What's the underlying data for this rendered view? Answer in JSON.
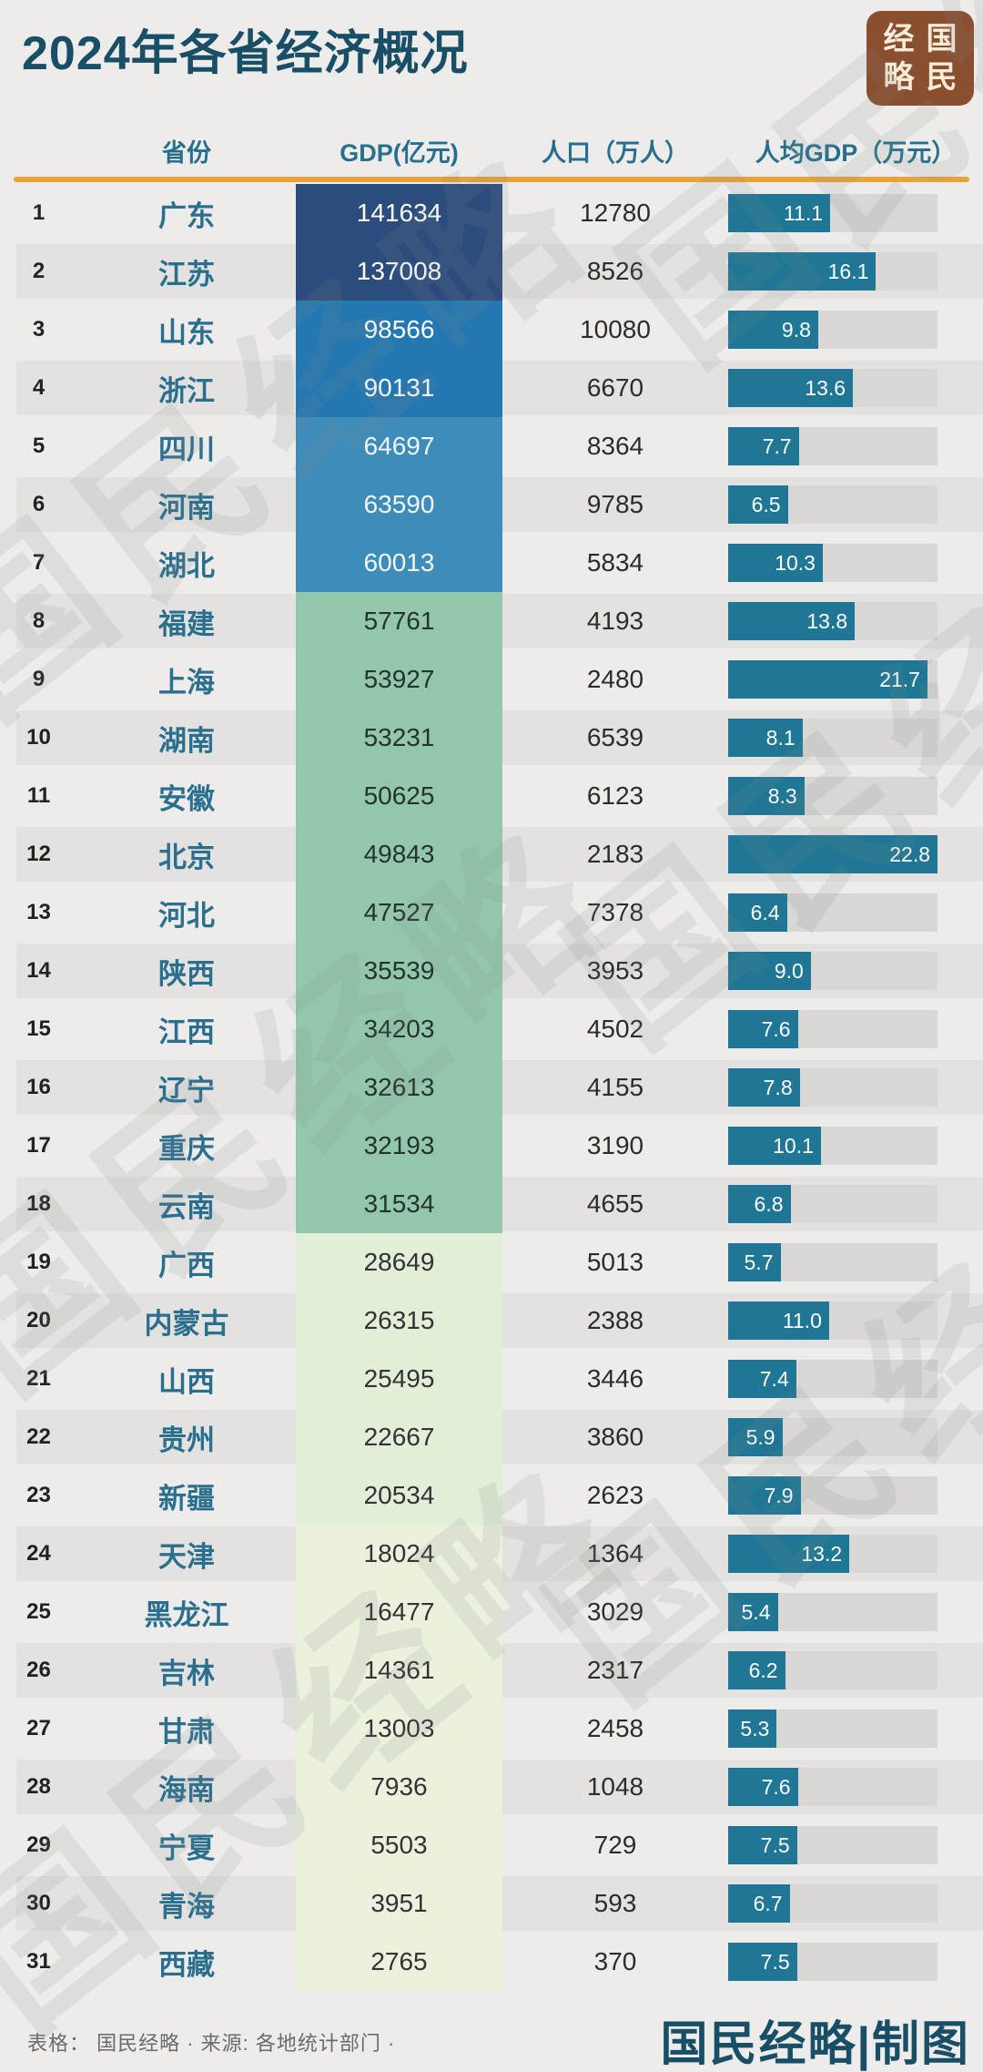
{
  "title": "2024年各省经济概况",
  "logo": {
    "chars": [
      "经",
      "国",
      "略",
      "民"
    ]
  },
  "columns": [
    "省份",
    "GDP(亿元)",
    "人口（万人）",
    "人均GDP（万元）"
  ],
  "watermark_text": "国民经略",
  "footer": {
    "source": "表格：  国民经略 · 来源: 各地统计部门 ·",
    "credit": "国民经略|制图"
  },
  "colors": {
    "accent_orange": "#e8a33b",
    "title_teal": "#184f66",
    "header_teal": "#26708e",
    "bar_fill": "#1f7795",
    "bar_track": "#d8d7d5",
    "logo_brown": "#8a4f2e",
    "gdp_groups": {
      "g1": {
        "bg": "#2b4c7d",
        "text": "#ffffff"
      },
      "g2": {
        "bg": "#2478b2",
        "text": "#ffffff"
      },
      "g3": {
        "bg": "#3e8cba",
        "text": "#f2f7f9"
      },
      "g4": {
        "bg": "#93c7ac",
        "text": "#23332d"
      },
      "g5": {
        "bg": "#e2eed7",
        "text": "#333333"
      },
      "g6": {
        "bg": "#eaf2de",
        "text": "#333333"
      }
    }
  },
  "bar_max": 22.8,
  "rows": [
    {
      "rank": 1,
      "province": "广东",
      "gdp": "141634",
      "population": "12780",
      "per_capita": "11.1",
      "group": "g1"
    },
    {
      "rank": 2,
      "province": "江苏",
      "gdp": "137008",
      "population": "8526",
      "per_capita": "16.1",
      "group": "g1"
    },
    {
      "rank": 3,
      "province": "山东",
      "gdp": "98566",
      "population": "10080",
      "per_capita": "9.8",
      "group": "g2"
    },
    {
      "rank": 4,
      "province": "浙江",
      "gdp": "90131",
      "population": "6670",
      "per_capita": "13.6",
      "group": "g2"
    },
    {
      "rank": 5,
      "province": "四川",
      "gdp": "64697",
      "population": "8364",
      "per_capita": "7.7",
      "group": "g3"
    },
    {
      "rank": 6,
      "province": "河南",
      "gdp": "63590",
      "population": "9785",
      "per_capita": "6.5",
      "group": "g3"
    },
    {
      "rank": 7,
      "province": "湖北",
      "gdp": "60013",
      "population": "5834",
      "per_capita": "10.3",
      "group": "g3"
    },
    {
      "rank": 8,
      "province": "福建",
      "gdp": "57761",
      "population": "4193",
      "per_capita": "13.8",
      "group": "g4"
    },
    {
      "rank": 9,
      "province": "上海",
      "gdp": "53927",
      "population": "2480",
      "per_capita": "21.7",
      "group": "g4"
    },
    {
      "rank": 10,
      "province": "湖南",
      "gdp": "53231",
      "population": "6539",
      "per_capita": "8.1",
      "group": "g4"
    },
    {
      "rank": 11,
      "province": "安徽",
      "gdp": "50625",
      "population": "6123",
      "per_capita": "8.3",
      "group": "g4"
    },
    {
      "rank": 12,
      "province": "北京",
      "gdp": "49843",
      "population": "2183",
      "per_capita": "22.8",
      "group": "g4"
    },
    {
      "rank": 13,
      "province": "河北",
      "gdp": "47527",
      "population": "7378",
      "per_capita": "6.4",
      "group": "g4"
    },
    {
      "rank": 14,
      "province": "陕西",
      "gdp": "35539",
      "population": "3953",
      "per_capita": "9.0",
      "group": "g4"
    },
    {
      "rank": 15,
      "province": "江西",
      "gdp": "34203",
      "population": "4502",
      "per_capita": "7.6",
      "group": "g4"
    },
    {
      "rank": 16,
      "province": "辽宁",
      "gdp": "32613",
      "population": "4155",
      "per_capita": "7.8",
      "group": "g4"
    },
    {
      "rank": 17,
      "province": "重庆",
      "gdp": "32193",
      "population": "3190",
      "per_capita": "10.1",
      "group": "g4"
    },
    {
      "rank": 18,
      "province": "云南",
      "gdp": "31534",
      "population": "4655",
      "per_capita": "6.8",
      "group": "g4"
    },
    {
      "rank": 19,
      "province": "广西",
      "gdp": "28649",
      "population": "5013",
      "per_capita": "5.7",
      "group": "g5"
    },
    {
      "rank": 20,
      "province": "内蒙古",
      "gdp": "26315",
      "population": "2388",
      "per_capita": "11.0",
      "group": "g5"
    },
    {
      "rank": 21,
      "province": "山西",
      "gdp": "25495",
      "population": "3446",
      "per_capita": "7.4",
      "group": "g5"
    },
    {
      "rank": 22,
      "province": "贵州",
      "gdp": "22667",
      "population": "3860",
      "per_capita": "5.9",
      "group": "g5"
    },
    {
      "rank": 23,
      "province": "新疆",
      "gdp": "20534",
      "population": "2623",
      "per_capita": "7.9",
      "group": "g5"
    },
    {
      "rank": 24,
      "province": "天津",
      "gdp": "18024",
      "population": "1364",
      "per_capita": "13.2",
      "group": "g6"
    },
    {
      "rank": 25,
      "province": "黑龙江",
      "gdp": "16477",
      "population": "3029",
      "per_capita": "5.4",
      "group": "g6"
    },
    {
      "rank": 26,
      "province": "吉林",
      "gdp": "14361",
      "population": "2317",
      "per_capita": "6.2",
      "group": "g6"
    },
    {
      "rank": 27,
      "province": "甘肃",
      "gdp": "13003",
      "population": "2458",
      "per_capita": "5.3",
      "group": "g6"
    },
    {
      "rank": 28,
      "province": "海南",
      "gdp": "7936",
      "population": "1048",
      "per_capita": "7.6",
      "group": "g6"
    },
    {
      "rank": 29,
      "province": "宁夏",
      "gdp": "5503",
      "population": "729",
      "per_capita": "7.5",
      "group": "g6"
    },
    {
      "rank": 30,
      "province": "青海",
      "gdp": "3951",
      "population": "593",
      "per_capita": "6.7",
      "group": "g6"
    },
    {
      "rank": 31,
      "province": "西藏",
      "gdp": "2765",
      "population": "370",
      "per_capita": "7.5",
      "group": "g6"
    }
  ],
  "chart_data": {
    "type": "table",
    "title": "2024年各省经济概况",
    "columns": [
      "省份",
      "GDP(亿元)",
      "人口（万人）",
      "人均GDP（万元）"
    ],
    "bar_column": "人均GDP（万元）",
    "bar_axis_max": 22.8,
    "rows": [
      [
        "广东",
        141634,
        12780,
        11.1
      ],
      [
        "江苏",
        137008,
        8526,
        16.1
      ],
      [
        "山东",
        98566,
        10080,
        9.8
      ],
      [
        "浙江",
        90131,
        6670,
        13.6
      ],
      [
        "四川",
        64697,
        8364,
        7.7
      ],
      [
        "河南",
        63590,
        9785,
        6.5
      ],
      [
        "湖北",
        60013,
        5834,
        10.3
      ],
      [
        "福建",
        57761,
        4193,
        13.8
      ],
      [
        "上海",
        53927,
        2480,
        21.7
      ],
      [
        "湖南",
        53231,
        6539,
        8.1
      ],
      [
        "安徽",
        50625,
        6123,
        8.3
      ],
      [
        "北京",
        49843,
        2183,
        22.8
      ],
      [
        "河北",
        47527,
        7378,
        6.4
      ],
      [
        "陕西",
        35539,
        3953,
        9.0
      ],
      [
        "江西",
        34203,
        4502,
        7.6
      ],
      [
        "辽宁",
        32613,
        4155,
        7.8
      ],
      [
        "重庆",
        32193,
        3190,
        10.1
      ],
      [
        "云南",
        31534,
        4655,
        6.8
      ],
      [
        "广西",
        28649,
        5013,
        5.7
      ],
      [
        "内蒙古",
        26315,
        2388,
        11.0
      ],
      [
        "山西",
        25495,
        3446,
        7.4
      ],
      [
        "贵州",
        22667,
        3860,
        5.9
      ],
      [
        "新疆",
        20534,
        2623,
        7.9
      ],
      [
        "天津",
        18024,
        1364,
        13.2
      ],
      [
        "黑龙江",
        16477,
        3029,
        5.4
      ],
      [
        "吉林",
        14361,
        2317,
        6.2
      ],
      [
        "甘肃",
        13003,
        2458,
        5.3
      ],
      [
        "海南",
        7936,
        1048,
        7.6
      ],
      [
        "宁夏",
        5503,
        729,
        7.5
      ],
      [
        "青海",
        3951,
        593,
        6.7
      ],
      [
        "西藏",
        2765,
        370,
        7.5
      ]
    ]
  }
}
